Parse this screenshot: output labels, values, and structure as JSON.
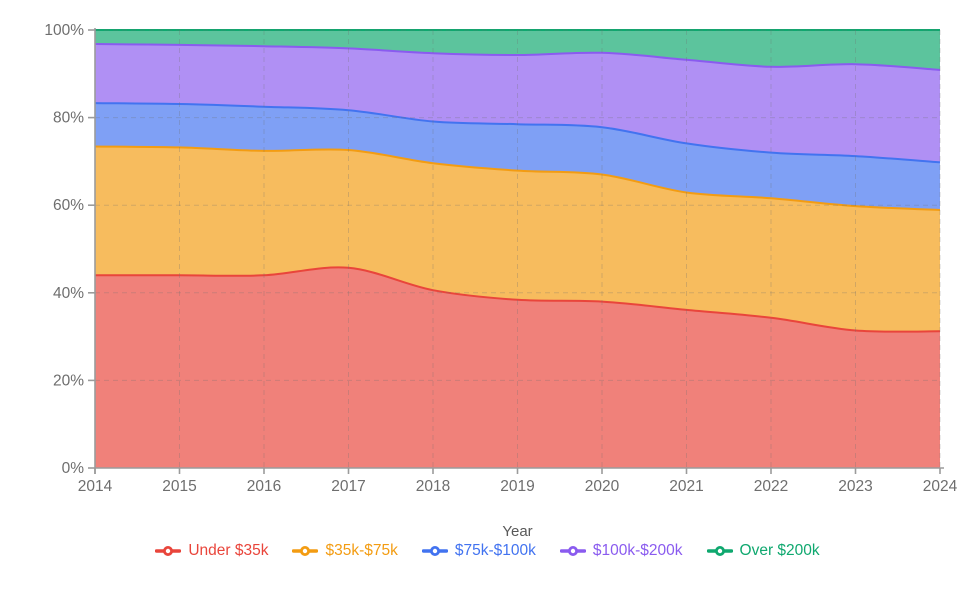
{
  "axes": {
    "x_label": "Year",
    "x_ticks": [
      "2014",
      "2015",
      "2016",
      "2017",
      "2018",
      "2019",
      "2020",
      "2021",
      "2022",
      "2023",
      "2024"
    ],
    "y_ticks": [
      "0%",
      "20%",
      "40%",
      "60%",
      "80%",
      "100%"
    ]
  },
  "style": {
    "axis_color": "#9b9b9b",
    "tick_label_color": "#6e6e6e",
    "grid_color": "rgba(110,110,110,0.28)",
    "fill_opacity": 0.68
  },
  "chart_data": {
    "type": "area",
    "stacked": true,
    "normalized_percent": true,
    "title": "",
    "xlabel": "Year",
    "ylabel": "",
    "ylim": [
      0,
      100
    ],
    "grid": true,
    "legend_position": "bottom",
    "x": [
      2014,
      2015,
      2016,
      2017,
      2018,
      2019,
      2020,
      2021,
      2022,
      2023,
      2024
    ],
    "series": [
      {
        "name": "Under $35k",
        "slug": "under-35k",
        "color": "#e9453b",
        "values": [
          44.0,
          44.0,
          44.0,
          45.7,
          40.6,
          38.4,
          38.0,
          36.1,
          34.3,
          31.4,
          31.2
        ]
      },
      {
        "name": "$35k-$75k",
        "slug": "35k-75k",
        "color": "#f39c12",
        "values": [
          29.4,
          29.2,
          28.4,
          26.9,
          29.0,
          29.5,
          29.0,
          26.8,
          27.3,
          28.4,
          27.7
        ]
      },
      {
        "name": "$75k-$100k",
        "slug": "75k-100k",
        "color": "#4273f0",
        "values": [
          9.9,
          9.9,
          10.1,
          9.1,
          9.5,
          10.6,
          10.8,
          11.2,
          10.4,
          11.4,
          10.9
        ]
      },
      {
        "name": "$100k-$200k",
        "slug": "100k-200k",
        "color": "#8a5bef",
        "values": [
          13.5,
          13.5,
          13.8,
          14.1,
          15.6,
          15.8,
          17.0,
          19.1,
          19.6,
          21.0,
          21.1
        ]
      },
      {
        "name": "Over $200k",
        "slug": "over-200k",
        "color": "#0fa86f",
        "values": [
          3.2,
          3.4,
          3.7,
          4.2,
          5.3,
          5.7,
          5.2,
          6.8,
          8.4,
          7.8,
          9.1
        ]
      }
    ]
  }
}
